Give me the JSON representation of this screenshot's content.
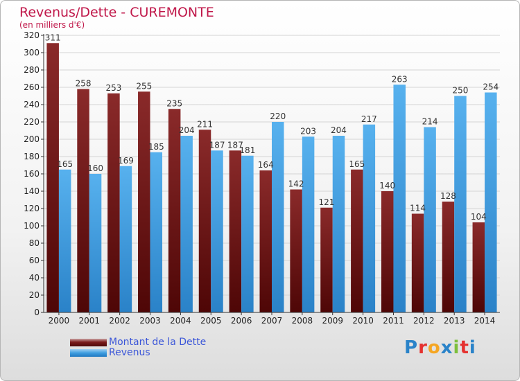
{
  "header": {
    "title": "Revenus/Dette - CUREMONTE",
    "subtitle": "(en milliers d'€)"
  },
  "legend": {
    "dette_label": "Montant de la Dette",
    "revenus_label": "Revenus"
  },
  "logo": {
    "text": "Proxiti",
    "letters": [
      "P",
      "r",
      "o",
      "x",
      "i",
      "t",
      "i"
    ],
    "colors": [
      "#2a83c9",
      "#e5312f",
      "#f5a623",
      "#2a83c9",
      "#7cbf3c",
      "#e5312f",
      "#2a83c9"
    ]
  },
  "colors": {
    "dette": "#7a1b1b",
    "revenus": "#3f9ee0",
    "accent": "#c0184a"
  },
  "chart_data": {
    "type": "bar",
    "title": "Revenus/Dette - CUREMONTE",
    "ylabel": "(en milliers d'€)",
    "xlabel": "",
    "ylim": [
      0,
      320
    ],
    "yticks": [
      0,
      20,
      40,
      60,
      80,
      100,
      120,
      140,
      160,
      180,
      200,
      220,
      240,
      260,
      280,
      300,
      320
    ],
    "grid": true,
    "legend_position": "bottom-left",
    "categories": [
      "2000",
      "2001",
      "2002",
      "2003",
      "2004",
      "2005",
      "2006",
      "2007",
      "2008",
      "2009",
      "2010",
      "2011",
      "2012",
      "2013",
      "2014"
    ],
    "series": [
      {
        "name": "Montant de la Dette",
        "values": [
          311,
          258,
          253,
          255,
          235,
          211,
          187,
          164,
          142,
          121,
          165,
          140,
          114,
          128,
          104
        ]
      },
      {
        "name": "Revenus",
        "values": [
          165,
          160,
          169,
          185,
          204,
          187,
          181,
          220,
          203,
          204,
          217,
          263,
          214,
          250,
          254
        ]
      }
    ]
  }
}
